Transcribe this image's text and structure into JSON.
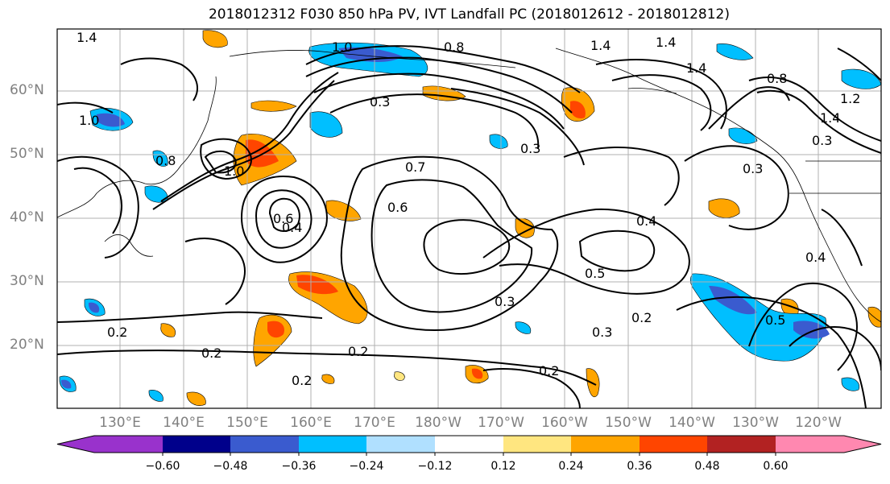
{
  "title": "2018012312 F030 850 hPa PV, IVT Landfall PC (2018012612 - 2018012812)",
  "map": {
    "projection": "cylindrical",
    "region": "North Pacific",
    "lat_labels": [
      "60°N",
      "50°N",
      "40°N",
      "30°N",
      "20°N"
    ],
    "lon_labels": [
      "130°E",
      "140°E",
      "150°E",
      "160°E",
      "170°E",
      "180°W",
      "170°W",
      "160°W",
      "150°W",
      "140°W",
      "130°W",
      "120°W"
    ],
    "gridlines": true,
    "contour_labels": [
      "1.4",
      "1.4",
      "1.4",
      "1.4",
      "1.4",
      "1.2",
      "1.0",
      "1.0",
      "1.0",
      "0.8",
      "0.8",
      "0.8",
      "0.7",
      "0.6",
      "0.6",
      "0.5",
      "0.5",
      "0.4",
      "0.4",
      "0.4",
      "0.3",
      "0.3",
      "0.3",
      "0.3",
      "0.3",
      "0.3",
      "0.2",
      "0.2",
      "0.2",
      "0.2",
      "0.2",
      "0.2"
    ]
  },
  "colorbar": {
    "ticks": [
      "−0.60",
      "−0.48",
      "−0.36",
      "−0.24",
      "−0.12",
      "0.12",
      "0.24",
      "0.36",
      "0.48",
      "0.60"
    ],
    "colors": [
      "#9932cc",
      "#00008b",
      "#3a5bcf",
      "#00bfff",
      "#b0e0ff",
      "#ffffff",
      "#ffe680",
      "#ffa500",
      "#ff4500",
      "#b22222",
      "#ff88b0"
    ]
  }
}
